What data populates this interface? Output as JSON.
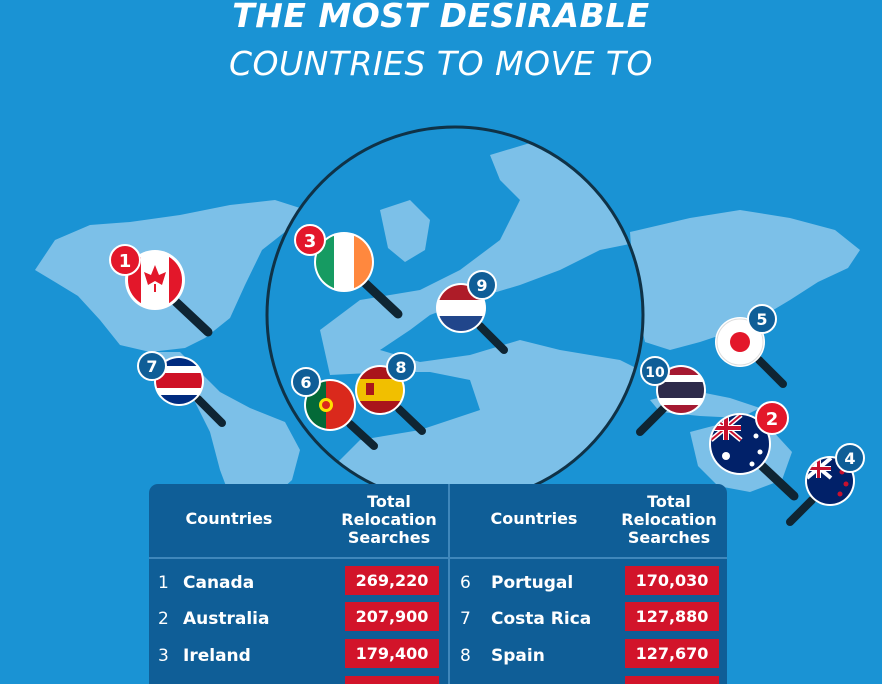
{
  "title": {
    "line1": "THE MOST DESIRABLE",
    "line2": "COUNTRIES TO MOVE TO"
  },
  "table": {
    "header_country": "Countries",
    "header_searches": [
      "Total",
      "Relocation",
      "Searches"
    ],
    "rows_left": [
      {
        "rank": "1",
        "country": "Canada",
        "searches": "269,220"
      },
      {
        "rank": "2",
        "country": "Australia",
        "searches": "207,900"
      },
      {
        "rank": "3",
        "country": "Ireland",
        "searches": "179,400"
      }
    ],
    "rows_right": [
      {
        "rank": "6",
        "country": "Portugal",
        "searches": "170,030"
      },
      {
        "rank": "7",
        "country": "Costa Rica",
        "searches": "127,880"
      },
      {
        "rank": "8",
        "country": "Spain",
        "searches": "127,670"
      }
    ]
  },
  "markers": [
    {
      "rank": "1",
      "flag": "canada-flag",
      "badge_color": "#e3172a"
    },
    {
      "rank": "2",
      "flag": "australia-flag",
      "badge_color": "#e3172a"
    },
    {
      "rank": "3",
      "flag": "ireland-flag",
      "badge_color": "#e3172a"
    },
    {
      "rank": "4",
      "flag": "new-zealand-flag",
      "badge_color": "#0f5e97"
    },
    {
      "rank": "5",
      "flag": "japan-flag",
      "badge_color": "#0f5e97"
    },
    {
      "rank": "6",
      "flag": "portugal-flag",
      "badge_color": "#0f5e97"
    },
    {
      "rank": "7",
      "flag": "costa-rica-flag",
      "badge_color": "#0f5e97"
    },
    {
      "rank": "8",
      "flag": "spain-flag",
      "badge_color": "#0f5e97"
    },
    {
      "rank": "9",
      "flag": "netherlands-flag",
      "badge_color": "#0f5e97"
    },
    {
      "rank": "10",
      "flag": "thailand-flag",
      "badge_color": "#0f5e97"
    }
  ],
  "colors": {
    "background": "#1a93d4",
    "land": "#7cc0e8",
    "table": "#0f5e97",
    "value_box": "#d2142a"
  }
}
